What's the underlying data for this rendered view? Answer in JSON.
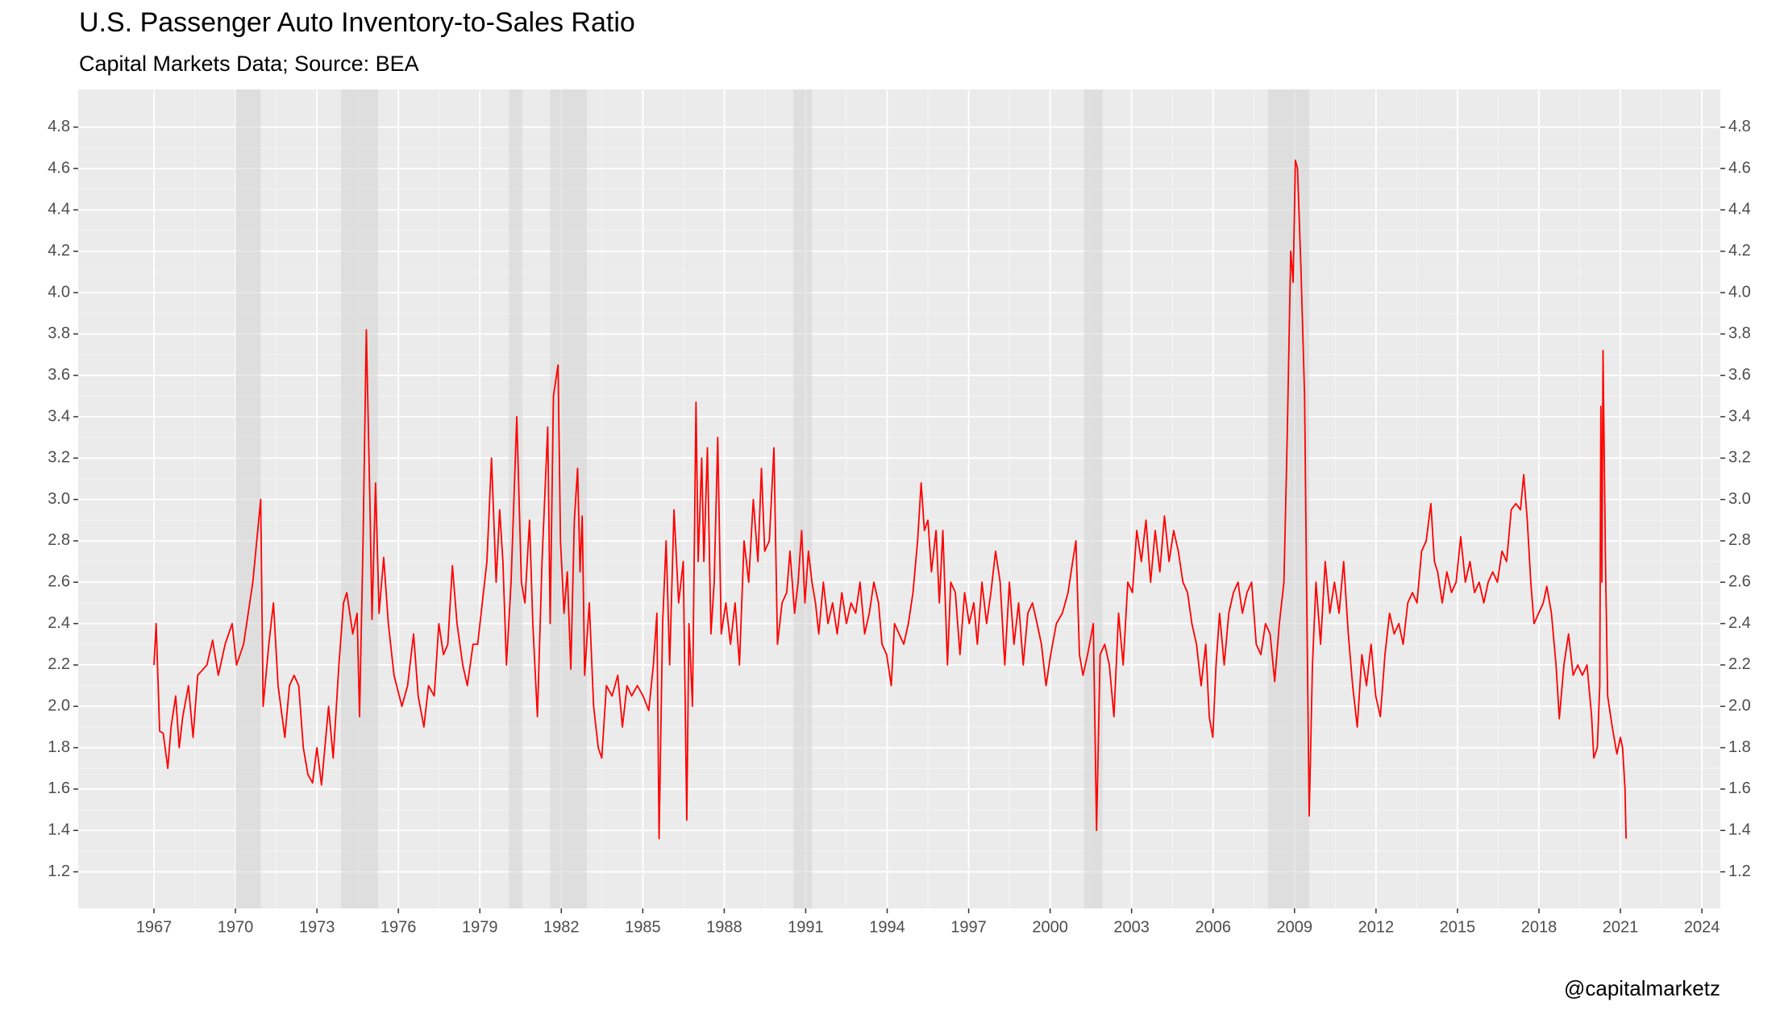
{
  "chart_data": {
    "type": "line",
    "title": "U.S. Passenger Auto Inventory-to-Sales Ratio",
    "subtitle": "Capital Markets Data; Source: BEA",
    "caption": "@capitalmarketz",
    "color": "#ff0000",
    "grid": true,
    "panel_color": "#ebebeb",
    "shade_color": "#d4d4d4",
    "xlim": [
      1964.21,
      2024.68
    ],
    "ylim": [
      1.023,
      4.982
    ],
    "xticks": [
      1967,
      1970,
      1973,
      1976,
      1979,
      1982,
      1985,
      1988,
      1991,
      1994,
      1997,
      2000,
      2003,
      2006,
      2009,
      2012,
      2015,
      2018,
      2021,
      2024
    ],
    "yticks": [
      1.2,
      1.4,
      1.6,
      1.8,
      {
        "value": 2.0,
        "label": "2.0"
      },
      2.2,
      2.4,
      2.6,
      2.8,
      {
        "value": 3.0,
        "label": "3.0"
      },
      3.2,
      3.4,
      3.6,
      3.8,
      {
        "value": 4.0,
        "label": "4.0"
      },
      4.2,
      4.4,
      4.6,
      4.8
    ],
    "right_axis": true,
    "shaded_periods": [
      [
        1970.0,
        1970.93
      ],
      [
        1973.89,
        1975.25
      ],
      [
        1980.07,
        1980.57
      ],
      [
        1981.59,
        1982.94
      ],
      [
        1990.55,
        1991.23
      ],
      [
        2001.25,
        2001.93
      ],
      [
        2008.02,
        2009.54
      ]
    ],
    "x": [
      1967.0,
      1967.08,
      1967.21,
      1967.34,
      1967.51,
      1967.63,
      1967.8,
      1967.93,
      1968.06,
      1968.27,
      1968.44,
      1968.61,
      1968.95,
      1969.16,
      1969.37,
      1969.62,
      1969.88,
      1970.04,
      1970.3,
      1970.64,
      1970.93,
      1971.02,
      1971.23,
      1971.4,
      1971.57,
      1971.82,
      1971.99,
      1972.16,
      1972.33,
      1972.5,
      1972.67,
      1972.84,
      1973.0,
      1973.17,
      1973.43,
      1973.6,
      1973.81,
      1973.98,
      1974.1,
      1974.32,
      1974.48,
      1974.57,
      1974.7,
      1974.82,
      1974.95,
      1975.03,
      1975.16,
      1975.29,
      1975.46,
      1975.63,
      1975.84,
      1976.13,
      1976.34,
      1976.56,
      1976.73,
      1976.94,
      1977.11,
      1977.32,
      1977.49,
      1977.66,
      1977.82,
      1977.99,
      1978.16,
      1978.37,
      1978.54,
      1978.75,
      1978.92,
      1979.09,
      1979.26,
      1979.43,
      1979.6,
      1979.73,
      1979.85,
      1979.98,
      1980.15,
      1980.36,
      1980.53,
      1980.66,
      1980.83,
      1980.95,
      1981.12,
      1981.29,
      1981.5,
      1981.59,
      1981.71,
      1981.88,
      1981.97,
      1982.1,
      1982.22,
      1982.35,
      1982.48,
      1982.6,
      1982.69,
      1982.77,
      1982.86,
      1983.03,
      1983.19,
      1983.36,
      1983.49,
      1983.66,
      1983.87,
      1984.08,
      1984.25,
      1984.42,
      1984.59,
      1984.8,
      1985.01,
      1985.22,
      1985.39,
      1985.52,
      1985.6,
      1985.73,
      1985.86,
      1985.99,
      1986.15,
      1986.32,
      1986.49,
      1986.62,
      1986.7,
      1986.83,
      1986.96,
      1987.04,
      1987.17,
      1987.25,
      1987.38,
      1987.51,
      1987.63,
      1987.76,
      1987.89,
      1988.06,
      1988.23,
      1988.4,
      1988.56,
      1988.73,
      1988.9,
      1989.07,
      1989.24,
      1989.37,
      1989.49,
      1989.66,
      1989.83,
      1989.96,
      1990.13,
      1990.3,
      1990.42,
      1990.59,
      1990.72,
      1990.85,
      1990.97,
      1991.1,
      1991.23,
      1991.36,
      1991.48,
      1991.65,
      1991.82,
      1991.99,
      1992.16,
      1992.33,
      1992.5,
      1992.67,
      1992.84,
      1993.0,
      1993.17,
      1993.34,
      1993.51,
      1993.68,
      1993.81,
      1993.98,
      1994.15,
      1994.27,
      1994.44,
      1994.61,
      1994.78,
      1994.95,
      1995.12,
      1995.25,
      1995.37,
      1995.5,
      1995.63,
      1995.8,
      1995.92,
      1996.05,
      1996.22,
      1996.34,
      1996.51,
      1996.68,
      1996.85,
      1997.02,
      1997.19,
      1997.32,
      1997.49,
      1997.66,
      1997.82,
      1997.99,
      1998.16,
      1998.33,
      1998.5,
      1998.67,
      1998.84,
      1999.01,
      1999.18,
      1999.35,
      1999.52,
      1999.68,
      1999.85,
      2000.02,
      2000.23,
      2000.45,
      2000.66,
      2000.83,
      2000.95,
      2001.08,
      2001.21,
      2001.38,
      2001.59,
      2001.71,
      2001.84,
      2002.01,
      2002.18,
      2002.35,
      2002.52,
      2002.69,
      2002.86,
      2003.03,
      2003.19,
      2003.36,
      2003.53,
      2003.7,
      2003.87,
      2004.04,
      2004.21,
      2004.38,
      2004.55,
      2004.72,
      2004.89,
      2005.06,
      2005.22,
      2005.39,
      2005.56,
      2005.73,
      2005.86,
      2005.99,
      2006.11,
      2006.24,
      2006.41,
      2006.58,
      2006.75,
      2006.92,
      2007.08,
      2007.25,
      2007.42,
      2007.59,
      2007.76,
      2007.93,
      2008.1,
      2008.27,
      2008.44,
      2008.61,
      2008.73,
      2008.86,
      2008.95,
      2009.03,
      2009.11,
      2009.24,
      2009.37,
      2009.45,
      2009.54,
      2009.66,
      2009.79,
      2009.96,
      2010.13,
      2010.3,
      2010.47,
      2010.64,
      2010.81,
      2010.98,
      2011.14,
      2011.31,
      2011.48,
      2011.65,
      2011.82,
      2011.99,
      2012.16,
      2012.33,
      2012.5,
      2012.67,
      2012.84,
      2013.0,
      2013.17,
      2013.34,
      2013.51,
      2013.68,
      2013.85,
      2014.02,
      2014.15,
      2014.27,
      2014.44,
      2014.61,
      2014.78,
      2014.95,
      2015.12,
      2015.29,
      2015.46,
      2015.63,
      2015.8,
      2015.97,
      2016.13,
      2016.3,
      2016.47,
      2016.64,
      2016.81,
      2016.98,
      2017.15,
      2017.32,
      2017.44,
      2017.57,
      2017.7,
      2017.82,
      2017.99,
      2018.16,
      2018.29,
      2018.46,
      2018.63,
      2018.75,
      2018.92,
      2019.09,
      2019.26,
      2019.43,
      2019.6,
      2019.77,
      2019.94,
      2020.02,
      2020.15,
      2020.24,
      2020.28,
      2020.32,
      2020.36,
      2020.45,
      2020.53,
      2020.7,
      2020.87,
      2021.0,
      2021.08,
      2021.17,
      2021.21
    ],
    "values": [
      2.2,
      2.4,
      1.88,
      1.87,
      1.7,
      1.9,
      2.05,
      1.8,
      1.95,
      2.1,
      1.85,
      2.15,
      2.2,
      2.32,
      2.15,
      2.3,
      2.4,
      2.2,
      2.3,
      2.6,
      3.0,
      2.0,
      2.3,
      2.5,
      2.1,
      1.85,
      2.1,
      2.15,
      2.1,
      1.8,
      1.67,
      1.63,
      1.8,
      1.62,
      2.0,
      1.75,
      2.2,
      2.5,
      2.55,
      2.35,
      2.45,
      1.95,
      2.8,
      3.82,
      3.0,
      2.42,
      3.08,
      2.45,
      2.72,
      2.4,
      2.15,
      2.0,
      2.1,
      2.35,
      2.05,
      1.9,
      2.1,
      2.05,
      2.4,
      2.25,
      2.3,
      2.68,
      2.4,
      2.2,
      2.1,
      2.3,
      2.3,
      2.5,
      2.7,
      3.2,
      2.6,
      2.95,
      2.7,
      2.2,
      2.6,
      3.4,
      2.6,
      2.5,
      2.9,
      2.4,
      1.95,
      2.7,
      3.35,
      2.4,
      3.5,
      3.65,
      2.8,
      2.45,
      2.65,
      2.18,
      2.9,
      3.15,
      2.65,
      2.92,
      2.15,
      2.5,
      2.0,
      1.8,
      1.75,
      2.1,
      2.05,
      2.15,
      1.9,
      2.1,
      2.05,
      2.1,
      2.05,
      1.98,
      2.2,
      2.45,
      1.36,
      2.4,
      2.8,
      2.2,
      2.95,
      2.5,
      2.7,
      1.45,
      2.4,
      2.0,
      3.47,
      2.7,
      3.2,
      2.7,
      3.25,
      2.35,
      2.6,
      3.3,
      2.35,
      2.5,
      2.3,
      2.5,
      2.2,
      2.8,
      2.6,
      3.0,
      2.7,
      3.15,
      2.75,
      2.8,
      3.25,
      2.3,
      2.5,
      2.55,
      2.75,
      2.45,
      2.6,
      2.85,
      2.5,
      2.75,
      2.6,
      2.5,
      2.35,
      2.6,
      2.4,
      2.5,
      2.35,
      2.55,
      2.4,
      2.5,
      2.45,
      2.6,
      2.35,
      2.45,
      2.6,
      2.5,
      2.3,
      2.25,
      2.1,
      2.4,
      2.35,
      2.3,
      2.4,
      2.55,
      2.8,
      3.08,
      2.85,
      2.9,
      2.65,
      2.85,
      2.5,
      2.85,
      2.2,
      2.6,
      2.55,
      2.25,
      2.55,
      2.4,
      2.5,
      2.3,
      2.6,
      2.4,
      2.55,
      2.75,
      2.6,
      2.2,
      2.6,
      2.3,
      2.5,
      2.2,
      2.45,
      2.5,
      2.4,
      2.3,
      2.1,
      2.25,
      2.4,
      2.45,
      2.55,
      2.7,
      2.8,
      2.25,
      2.15,
      2.25,
      2.4,
      1.4,
      2.25,
      2.3,
      2.2,
      1.95,
      2.45,
      2.2,
      2.6,
      2.55,
      2.85,
      2.7,
      2.9,
      2.6,
      2.85,
      2.65,
      2.92,
      2.7,
      2.85,
      2.75,
      2.6,
      2.55,
      2.4,
      2.3,
      2.1,
      2.3,
      1.95,
      1.85,
      2.2,
      2.45,
      2.2,
      2.45,
      2.55,
      2.6,
      2.45,
      2.55,
      2.6,
      2.3,
      2.25,
      2.4,
      2.35,
      2.12,
      2.4,
      2.6,
      3.3,
      4.2,
      4.05,
      4.64,
      4.6,
      4.1,
      3.5,
      2.5,
      1.47,
      2.2,
      2.6,
      2.3,
      2.7,
      2.45,
      2.6,
      2.45,
      2.7,
      2.35,
      2.1,
      1.9,
      2.25,
      2.1,
      2.3,
      2.05,
      1.95,
      2.25,
      2.45,
      2.35,
      2.4,
      2.3,
      2.5,
      2.55,
      2.5,
      2.75,
      2.8,
      2.98,
      2.7,
      2.65,
      2.5,
      2.65,
      2.55,
      2.6,
      2.82,
      2.6,
      2.7,
      2.55,
      2.6,
      2.5,
      2.6,
      2.65,
      2.6,
      2.75,
      2.7,
      2.95,
      2.98,
      2.95,
      3.12,
      2.9,
      2.6,
      2.4,
      2.45,
      2.5,
      2.58,
      2.45,
      2.2,
      1.94,
      2.2,
      2.35,
      2.15,
      2.2,
      2.15,
      2.2,
      1.95,
      1.75,
      1.8,
      2.1,
      3.45,
      2.6,
      3.72,
      2.7,
      2.05,
      1.9,
      1.77,
      1.85,
      1.8,
      1.6,
      1.36
    ]
  }
}
